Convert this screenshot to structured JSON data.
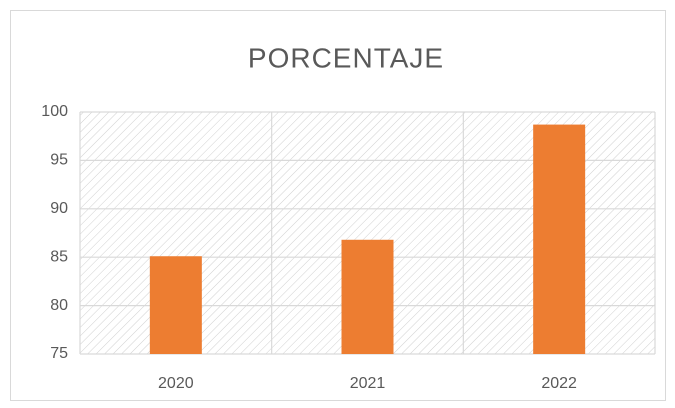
{
  "chart_data": {
    "type": "bar",
    "title": "PORCENTAJE",
    "categories": [
      "2020",
      "2021",
      "2022"
    ],
    "values": [
      85.1,
      86.8,
      98.7
    ],
    "color": "#ed7d31",
    "ylim": [
      75,
      100
    ],
    "yticks": [
      75,
      80,
      85,
      90,
      95,
      100
    ],
    "grid": true
  }
}
